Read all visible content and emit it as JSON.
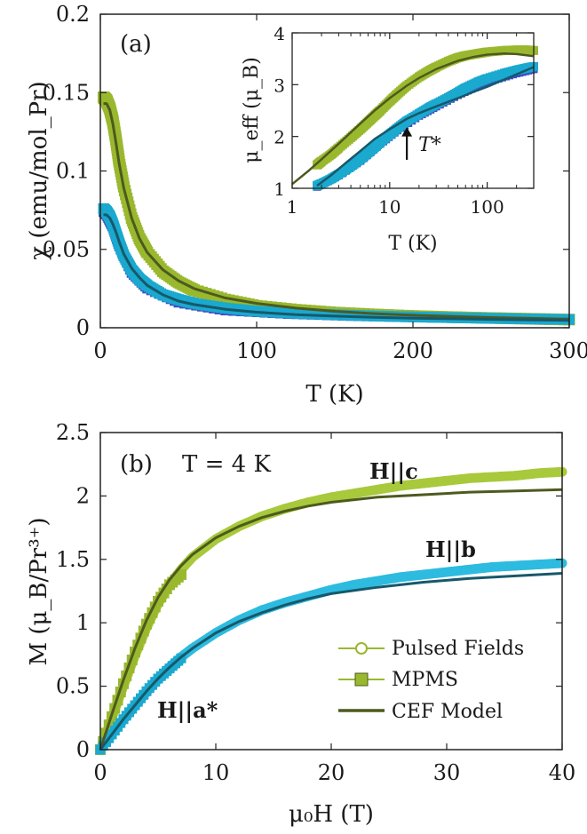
{
  "colors": {
    "hc": "#9ab82e",
    "hc_light": "#a8c93b",
    "hb": "#1aa9cf",
    "hb_light": "#2dbbe0",
    "ha": "#3a4fc4",
    "cef": "#4d5a1e",
    "cef_b": "#17586a",
    "axis": "#222222"
  },
  "chart_data": [
    {
      "id": "a",
      "type": "scatter",
      "panel_label": "(a)",
      "xlabel": "T (K)",
      "ylabel": "χ (emu/mol_Pr)",
      "xlim": [
        0,
        300
      ],
      "ylim": [
        0,
        0.2
      ],
      "xticks": [
        "0",
        "100",
        "200",
        "300"
      ],
      "yticks": [
        "0",
        "0.05",
        "0.1",
        "0.15",
        "0.2"
      ],
      "series": [
        {
          "key": "hc",
          "x": [
            2,
            3,
            4,
            6,
            8,
            10,
            12,
            15,
            20,
            25,
            30,
            40,
            50,
            60,
            80,
            100,
            125,
            150,
            175,
            200,
            225,
            250,
            275,
            300
          ],
          "y": [
            0.147,
            0.146,
            0.145,
            0.14,
            0.132,
            0.12,
            0.106,
            0.09,
            0.07,
            0.057,
            0.048,
            0.036,
            0.029,
            0.024,
            0.018,
            0.014,
            0.0115,
            0.0097,
            0.0085,
            0.0075,
            0.0068,
            0.0062,
            0.0057,
            0.0052
          ]
        },
        {
          "key": "hb",
          "x": [
            2,
            3,
            4,
            6,
            8,
            10,
            12,
            15,
            20,
            25,
            30,
            40,
            50,
            60,
            80,
            100,
            125,
            150,
            175,
            200,
            225,
            250,
            275,
            300
          ],
          "y": [
            0.076,
            0.075,
            0.074,
            0.071,
            0.066,
            0.06,
            0.054,
            0.046,
            0.037,
            0.031,
            0.027,
            0.021,
            0.018,
            0.0155,
            0.0125,
            0.0105,
            0.0092,
            0.0083,
            0.0075,
            0.0069,
            0.0064,
            0.006,
            0.0056,
            0.0053
          ]
        },
        {
          "key": "ha",
          "x": [
            2,
            4,
            8,
            12,
            20,
            30,
            50,
            80,
            120,
            160,
            200,
            250,
            300
          ],
          "y": [
            0.074,
            0.072,
            0.064,
            0.052,
            0.035,
            0.025,
            0.016,
            0.011,
            0.0088,
            0.0075,
            0.0066,
            0.0058,
            0.0052
          ]
        },
        {
          "key": "cef_c",
          "x": [
            2,
            4,
            6,
            8,
            10,
            12,
            15,
            20,
            25,
            30,
            40,
            50,
            60,
            80,
            100,
            125,
            150,
            175,
            200,
            225,
            250,
            275,
            300
          ],
          "y": [
            0.143,
            0.143,
            0.139,
            0.13,
            0.118,
            0.105,
            0.089,
            0.07,
            0.057,
            0.048,
            0.037,
            0.03,
            0.025,
            0.019,
            0.0155,
            0.0125,
            0.0105,
            0.009,
            0.008,
            0.0072,
            0.0065,
            0.006,
            0.0055
          ]
        },
        {
          "key": "cef_b",
          "x": [
            2,
            4,
            6,
            8,
            10,
            12,
            15,
            20,
            25,
            30,
            40,
            50,
            60,
            80,
            100,
            125,
            150,
            175,
            200,
            225,
            250,
            275,
            300
          ],
          "y": [
            0.072,
            0.072,
            0.07,
            0.066,
            0.061,
            0.055,
            0.047,
            0.038,
            0.032,
            0.027,
            0.021,
            0.017,
            0.0148,
            0.0118,
            0.0099,
            0.0084,
            0.0074,
            0.0067,
            0.0061,
            0.0057,
            0.0053,
            0.005,
            0.0047
          ]
        }
      ]
    },
    {
      "id": "a_inset",
      "type": "scatter",
      "xlabel": "T (K)",
      "ylabel": "μ_eff (μ_B)",
      "xscale": "log",
      "xlim": [
        1,
        300
      ],
      "ylim": [
        1,
        4
      ],
      "xticks": [
        "1",
        "10",
        "100"
      ],
      "yticks": [
        "1",
        "2",
        "3",
        "4"
      ],
      "annotation": "T*",
      "annotation_x": 15,
      "series": [
        {
          "key": "hc",
          "x": [
            1.8,
            2,
            2.5,
            3,
            4,
            5,
            6,
            7,
            8,
            10,
            12,
            15,
            20,
            25,
            30,
            40,
            50,
            60,
            80,
            100,
            150,
            200,
            250,
            300
          ],
          "y": [
            1.45,
            1.52,
            1.65,
            1.78,
            1.98,
            2.14,
            2.28,
            2.4,
            2.5,
            2.68,
            2.82,
            2.98,
            3.15,
            3.26,
            3.34,
            3.45,
            3.52,
            3.56,
            3.6,
            3.63,
            3.66,
            3.67,
            3.67,
            3.66
          ]
        },
        {
          "key": "hb",
          "x": [
            1.8,
            2,
            2.5,
            3,
            4,
            5,
            6,
            7,
            8,
            10,
            12,
            15,
            20,
            25,
            30,
            40,
            50,
            60,
            80,
            100,
            150,
            200,
            250,
            300
          ],
          "y": [
            1.05,
            1.09,
            1.18,
            1.27,
            1.42,
            1.56,
            1.68,
            1.79,
            1.89,
            2.04,
            2.16,
            2.3,
            2.44,
            2.55,
            2.63,
            2.75,
            2.85,
            2.94,
            3.05,
            3.12,
            3.22,
            3.28,
            3.32,
            3.35
          ]
        },
        {
          "key": "ha",
          "x": [
            1.8,
            3,
            5,
            8,
            12,
            20,
            30,
            50,
            80,
            120,
            200,
            300
          ],
          "y": [
            1.03,
            1.25,
            1.53,
            1.86,
            2.12,
            2.4,
            2.58,
            2.8,
            2.98,
            3.1,
            3.22,
            3.3
          ]
        },
        {
          "key": "cef_c",
          "x": [
            1,
            1.5,
            2,
            3,
            4,
            5,
            7,
            10,
            15,
            20,
            30,
            50,
            70,
            100,
            150,
            200,
            300
          ],
          "y": [
            1.08,
            1.35,
            1.56,
            1.86,
            2.08,
            2.25,
            2.5,
            2.74,
            2.98,
            3.13,
            3.3,
            3.46,
            3.53,
            3.58,
            3.6,
            3.59,
            3.55
          ]
        },
        {
          "key": "cef_b",
          "x": [
            1.8,
            2.5,
            3.5,
            5,
            7,
            10,
            15,
            20,
            30,
            50,
            70,
            100,
            150,
            200,
            300
          ],
          "y": [
            1.05,
            1.25,
            1.48,
            1.72,
            1.95,
            2.14,
            2.34,
            2.45,
            2.58,
            2.74,
            2.85,
            2.96,
            3.1,
            3.2,
            3.34
          ]
        }
      ]
    },
    {
      "id": "b",
      "type": "scatter",
      "panel_label": "(b)",
      "title": "T = 4 K",
      "xlabel": "μ₀H (T)",
      "ylabel": "M (μ_B/Pr³⁺)",
      "xlim": [
        0,
        40
      ],
      "ylim": [
        0,
        2.5
      ],
      "xticks": [
        "0",
        "10",
        "20",
        "30",
        "40"
      ],
      "yticks": [
        "0",
        "0.5",
        "1",
        "1.5",
        "2",
        "2.5"
      ],
      "series": [
        {
          "key": "hc",
          "name": "H||c",
          "x": [
            0,
            1,
            2,
            3,
            4,
            5,
            6,
            7,
            8,
            10,
            12,
            14,
            16,
            18,
            20,
            22,
            24,
            26,
            28,
            30,
            32,
            34,
            36,
            38,
            40
          ],
          "y": [
            0,
            0.25,
            0.5,
            0.74,
            0.96,
            1.15,
            1.3,
            1.42,
            1.52,
            1.66,
            1.76,
            1.84,
            1.9,
            1.95,
            1.99,
            2.02,
            2.05,
            2.08,
            2.1,
            2.12,
            2.14,
            2.15,
            2.16,
            2.18,
            2.19
          ]
        },
        {
          "key": "hb",
          "name": "H||b",
          "x": [
            0,
            1,
            2,
            3,
            4,
            5,
            6,
            7,
            8,
            10,
            12,
            14,
            16,
            18,
            20,
            22,
            24,
            26,
            28,
            30,
            32,
            34,
            36,
            38,
            40
          ],
          "y": [
            0,
            0.12,
            0.24,
            0.35,
            0.46,
            0.56,
            0.65,
            0.73,
            0.8,
            0.92,
            1.02,
            1.1,
            1.16,
            1.21,
            1.26,
            1.3,
            1.33,
            1.36,
            1.38,
            1.4,
            1.42,
            1.44,
            1.45,
            1.46,
            1.47
          ]
        },
        {
          "key": "ha",
          "name": "H||a*",
          "x": [
            0,
            1,
            2,
            3,
            4,
            5,
            6,
            7
          ],
          "y": [
            0,
            0.12,
            0.23,
            0.34,
            0.45,
            0.55,
            0.63,
            0.71
          ]
        },
        {
          "key": "mpms_c",
          "x": [
            0,
            1,
            2,
            3,
            4,
            5,
            6,
            7
          ],
          "y": [
            0,
            0.26,
            0.52,
            0.77,
            0.99,
            1.17,
            1.3,
            1.38
          ]
        },
        {
          "key": "mpms_b",
          "x": [
            0,
            1,
            2,
            3,
            4,
            5,
            6,
            7
          ],
          "y": [
            0,
            0.12,
            0.24,
            0.35,
            0.46,
            0.56,
            0.64,
            0.72
          ]
        },
        {
          "key": "cef_c",
          "x": [
            0,
            1,
            2,
            3,
            4,
            5,
            6,
            7,
            8,
            10,
            12,
            14,
            16,
            18,
            20,
            24,
            28,
            32,
            36,
            40
          ],
          "y": [
            0,
            0.28,
            0.55,
            0.8,
            1.02,
            1.2,
            1.34,
            1.45,
            1.54,
            1.67,
            1.76,
            1.83,
            1.88,
            1.92,
            1.95,
            1.99,
            2.01,
            2.03,
            2.04,
            2.05
          ]
        },
        {
          "key": "cef_b",
          "x": [
            0,
            1,
            2,
            3,
            4,
            5,
            6,
            7,
            8,
            10,
            12,
            14,
            16,
            18,
            20,
            24,
            28,
            32,
            36,
            40
          ],
          "y": [
            0,
            0.12,
            0.24,
            0.35,
            0.46,
            0.56,
            0.65,
            0.73,
            0.8,
            0.92,
            1.01,
            1.08,
            1.14,
            1.19,
            1.23,
            1.28,
            1.32,
            1.35,
            1.37,
            1.39
          ]
        }
      ],
      "legend": {
        "placement": "bottom-right",
        "entries": [
          "Pulsed Fields",
          "MPMS",
          "CEF Model"
        ]
      }
    }
  ]
}
